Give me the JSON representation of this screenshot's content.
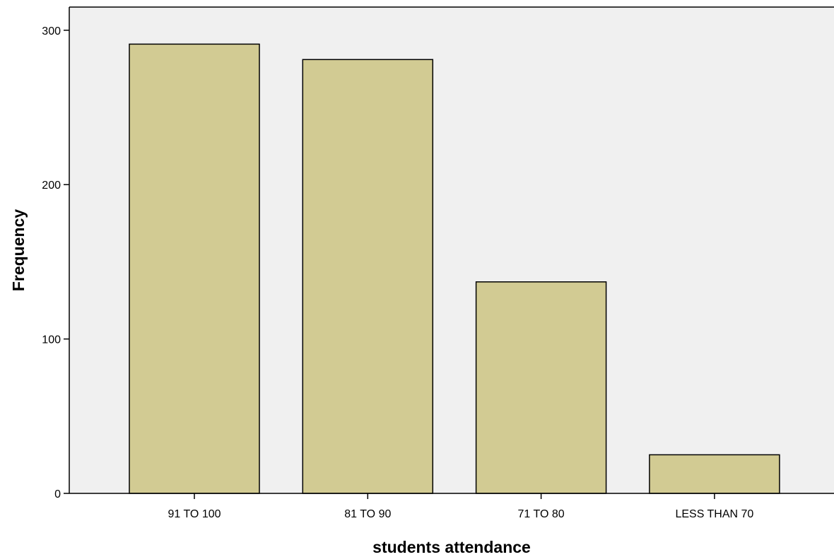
{
  "chart_data": {
    "type": "bar",
    "title": "",
    "xlabel": "students attendance",
    "ylabel": "Frequency",
    "categories": [
      "91 TO 100",
      "81 TO 90",
      "71 TO 80",
      "LESS THAN 70"
    ],
    "values": [
      291,
      281,
      137,
      25
    ],
    "ylim": [
      0,
      315
    ],
    "yticks": [
      0,
      100,
      200,
      300
    ],
    "grid": false,
    "legend": "none",
    "colors": {
      "bar_fill": "#d2cb93",
      "bar_stroke": "#000000",
      "plot_background": "#f0f0f0"
    }
  }
}
